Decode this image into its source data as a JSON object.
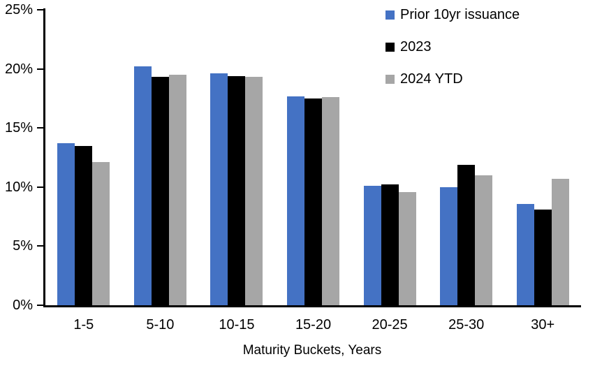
{
  "chart_data": {
    "type": "bar",
    "title": "",
    "categories": [
      "1-5",
      "5-10",
      "10-15",
      "15-20",
      "20-25",
      "25-30",
      "30+"
    ],
    "series": [
      {
        "name": "Prior 10yr issuance",
        "color": "#4472C4",
        "values": [
          13.7,
          20.2,
          19.6,
          17.7,
          10.1,
          10.0,
          8.6
        ]
      },
      {
        "name": "2023",
        "color": "#000000",
        "values": [
          13.5,
          19.3,
          19.4,
          17.5,
          10.2,
          11.9,
          8.1
        ]
      },
      {
        "name": "2024 YTD",
        "color": "#A6A6A6",
        "values": [
          12.1,
          19.5,
          19.3,
          17.6,
          9.6,
          11.0,
          10.7
        ]
      }
    ],
    "xlabel": "Maturity Buckets, Years",
    "ylabel": "",
    "ylim": [
      0,
      25
    ],
    "yticks": [
      0,
      5,
      10,
      15,
      20,
      25
    ],
    "ytick_suffix": "%",
    "grid": false,
    "legend_position": "top-right",
    "axis_color": "#000000",
    "background_color": "#FFFFFF"
  }
}
